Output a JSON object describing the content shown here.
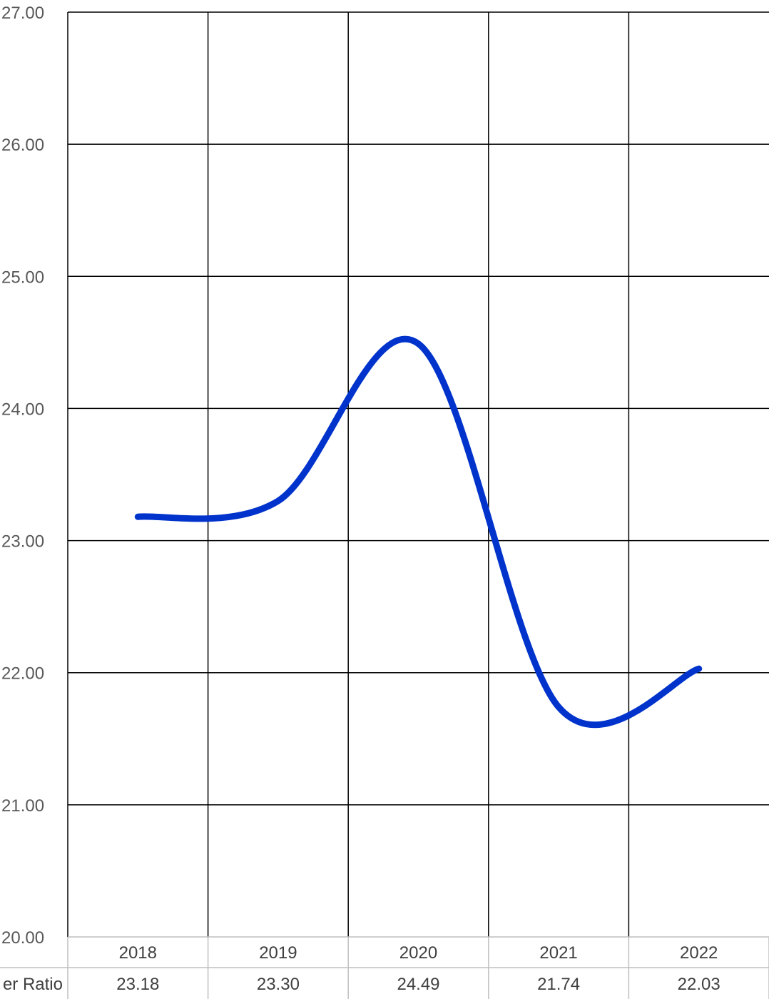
{
  "chart_data": {
    "type": "line",
    "title": "",
    "xlabel": "",
    "ylabel": "",
    "ylim": [
      20,
      27
    ],
    "y_ticks": [
      "20.00",
      "21.00",
      "22.00",
      "23.00",
      "24.00",
      "25.00",
      "26.00",
      "27.00"
    ],
    "categories": [
      "2018",
      "2019",
      "2020",
      "2021",
      "2022"
    ],
    "series": [
      {
        "name": "er Ratio",
        "values": [
          23.18,
          23.3,
          24.49,
          21.74,
          22.03
        ]
      }
    ],
    "value_labels": [
      "23.18",
      "23.30",
      "24.49",
      "21.74",
      "22.03"
    ],
    "grid": true,
    "smoothed": true,
    "data_table": true,
    "line_color": "#0033CC",
    "grid_color": "#000000",
    "table_border_color": "#BFBFBF"
  }
}
